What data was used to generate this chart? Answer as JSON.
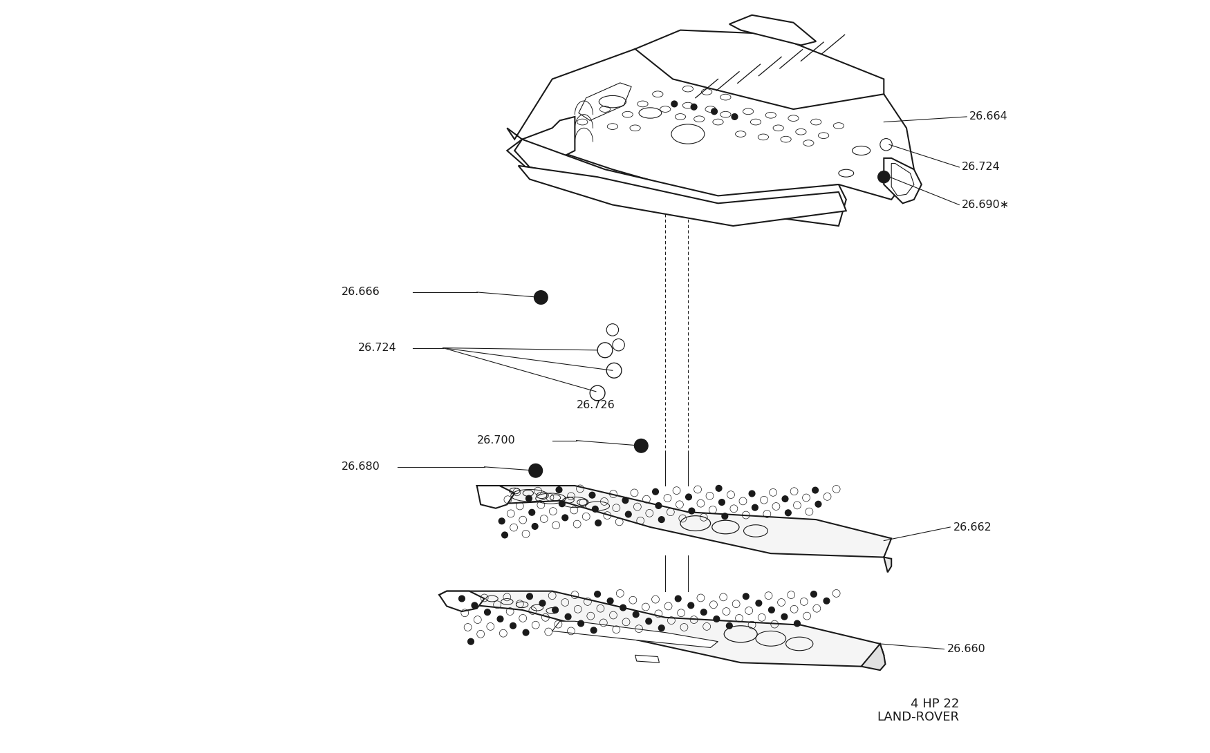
{
  "bg_color": "#ffffff",
  "line_color": "#1a1a1a",
  "text_color": "#1a1a1a",
  "figsize": [
    17.5,
    10.9
  ],
  "dpi": 100,
  "bottom_right_text_line1": "4 HP 22",
  "bottom_right_text_line2": "LAND-ROVER"
}
